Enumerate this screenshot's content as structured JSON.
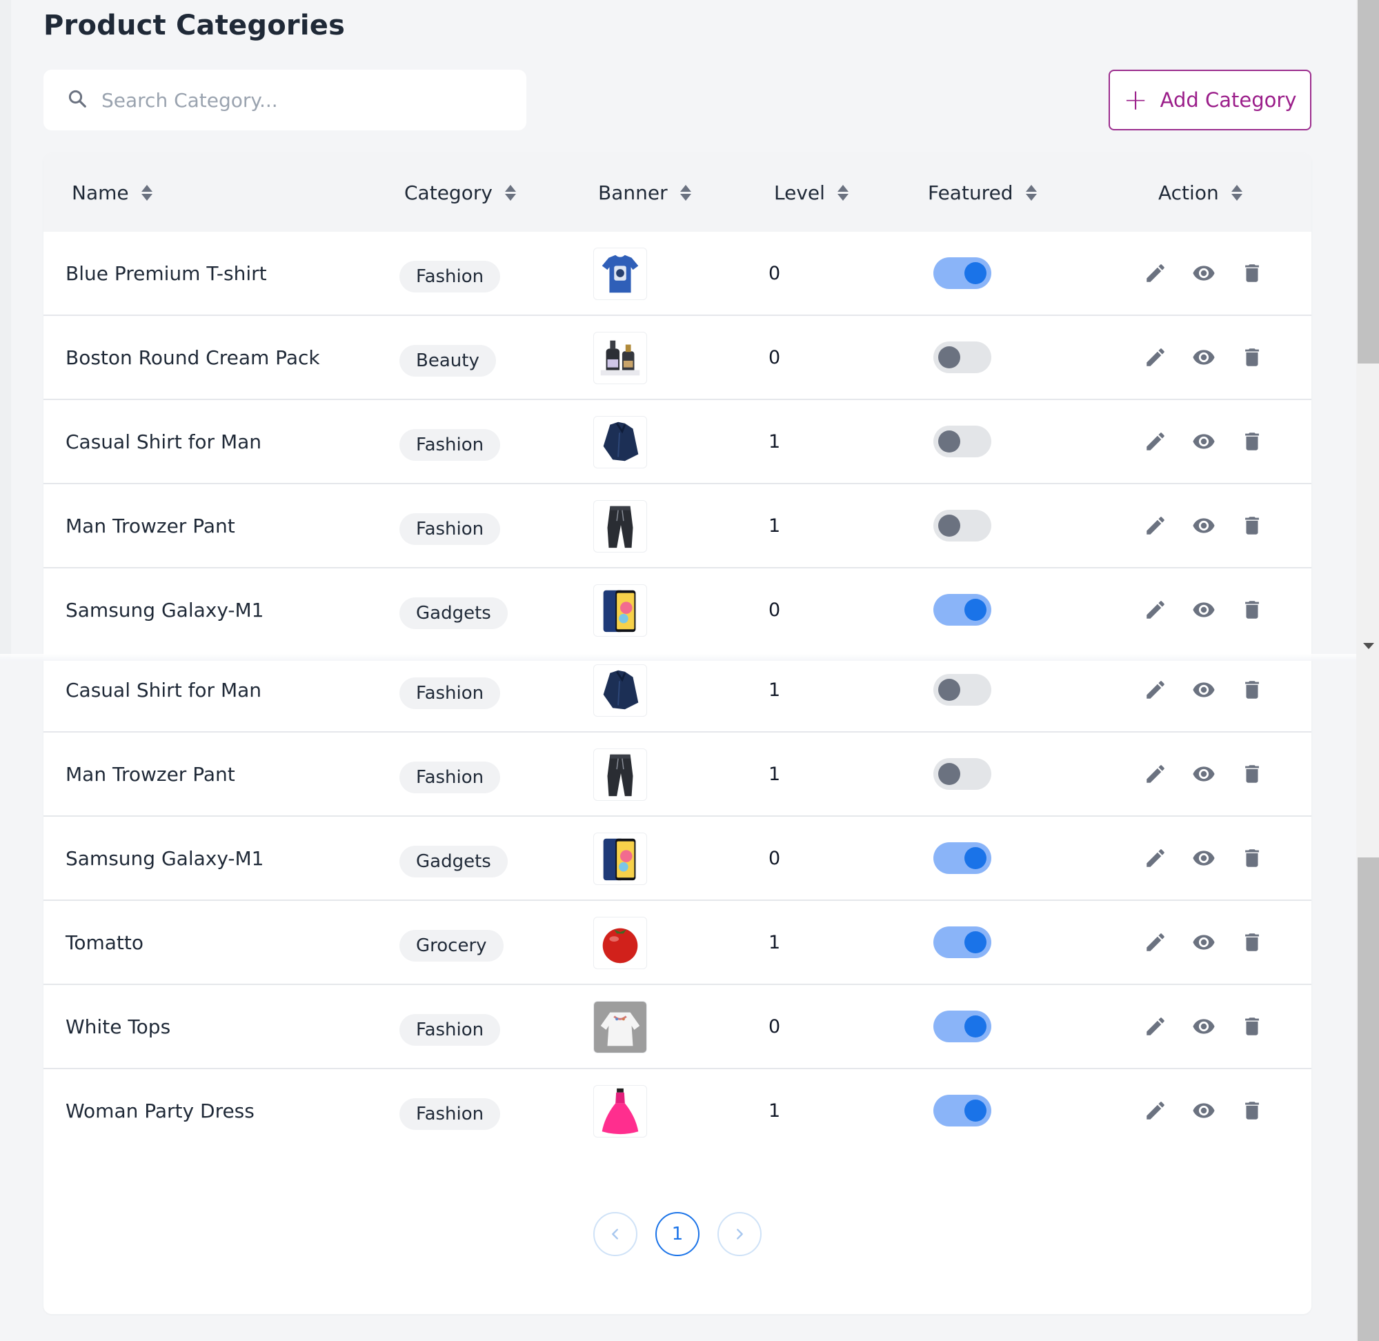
{
  "page": {
    "title": "Product Categories"
  },
  "search": {
    "placeholder": "Search Category...",
    "icon": "search-icon"
  },
  "toolbar": {
    "add_label": "Add Category",
    "add_icon": "plus-icon"
  },
  "table": {
    "columns": [
      "Name",
      "Category",
      "Banner",
      "Level",
      "Featured",
      "Action"
    ],
    "rows": [
      {
        "name": "Blue Premium T-shirt",
        "category": "Fashion",
        "banner": "tshirt",
        "level": "0",
        "featured": true
      },
      {
        "name": "Boston Round Cream Pack",
        "category": "Beauty",
        "banner": "bottles",
        "level": "0",
        "featured": false
      },
      {
        "name": "Casual Shirt for Man",
        "category": "Fashion",
        "banner": "shirt",
        "level": "1",
        "featured": false
      },
      {
        "name": "Man Trowzer Pant",
        "category": "Fashion",
        "banner": "pants",
        "level": "1",
        "featured": false
      },
      {
        "name": "Samsung Galaxy-M1",
        "category": "Gadgets",
        "banner": "phone",
        "level": "0",
        "featured": true
      },
      {
        "name": "Casual Shirt for Man",
        "category": "Fashion",
        "banner": "shirt",
        "level": "1",
        "featured": false
      },
      {
        "name": "Man Trowzer Pant",
        "category": "Fashion",
        "banner": "pants",
        "level": "1",
        "featured": false
      },
      {
        "name": "Samsung Galaxy-M1",
        "category": "Gadgets",
        "banner": "phone",
        "level": "0",
        "featured": true
      },
      {
        "name": "Tomatto",
        "category": "Grocery",
        "banner": "tomato",
        "level": "1",
        "featured": true
      },
      {
        "name": "White Tops",
        "category": "Fashion",
        "banner": "top",
        "level": "0",
        "featured": true
      },
      {
        "name": "Woman Party Dress",
        "category": "Fashion",
        "banner": "dress",
        "level": "1",
        "featured": true
      }
    ],
    "action_icons": [
      "edit-icon",
      "eye-icon",
      "trash-icon"
    ]
  },
  "pagination": {
    "current": "1",
    "prev_icon": "chevron-left-icon",
    "next_icon": "chevron-right-icon"
  },
  "colors": {
    "accent": "#9b1e8a",
    "primary": "#1a73e8",
    "toggle_on_track": "#8ab4f8"
  }
}
